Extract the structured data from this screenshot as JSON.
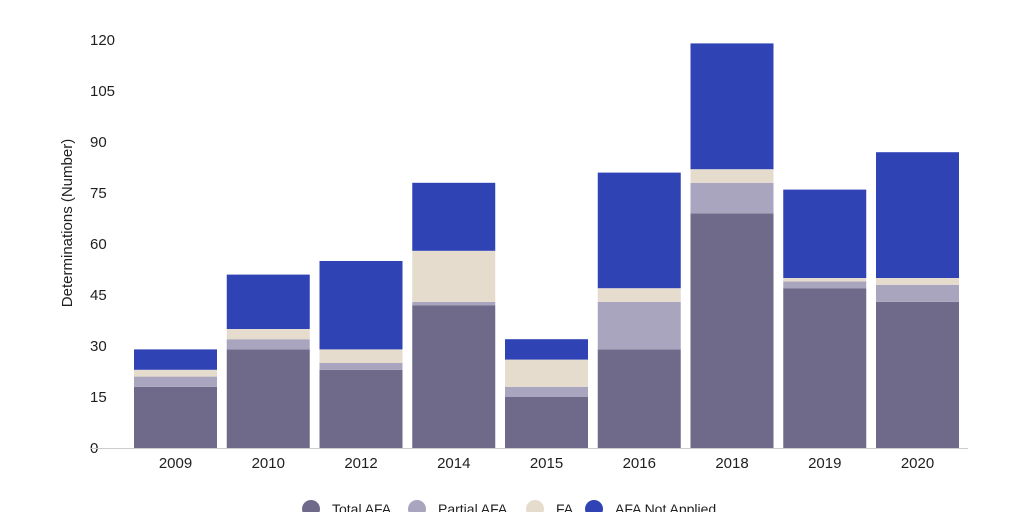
{
  "chart_data": {
    "type": "bar",
    "stacked": true,
    "title": "",
    "xlabel": "",
    "ylabel": "Determinations (Number)",
    "ylim": [
      0,
      120
    ],
    "yticks": [
      0,
      15,
      30,
      45,
      60,
      75,
      90,
      105,
      120
    ],
    "grid": false,
    "legend_position": "bottom",
    "categories": [
      "2009",
      "2010",
      "2012",
      "2014",
      "2015",
      "2016",
      "2018",
      "2019",
      "2020"
    ],
    "series": [
      {
        "name": "Total AFA",
        "color": "#706a8a",
        "values": [
          18,
          29,
          23,
          42,
          15,
          29,
          69,
          47,
          43
        ]
      },
      {
        "name": "Partial AFA",
        "color": "#a9a5bf",
        "values": [
          3,
          3,
          2,
          1,
          3,
          14,
          9,
          2,
          5
        ]
      },
      {
        "name": "FA",
        "color": "#e6dccd",
        "values": [
          2,
          3,
          4,
          15,
          8,
          4,
          4,
          1,
          2
        ]
      },
      {
        "name": "AFA Not Applied",
        "color": "#3043b5",
        "values": [
          6,
          16,
          26,
          20,
          6,
          34,
          37,
          26,
          37
        ]
      }
    ]
  }
}
